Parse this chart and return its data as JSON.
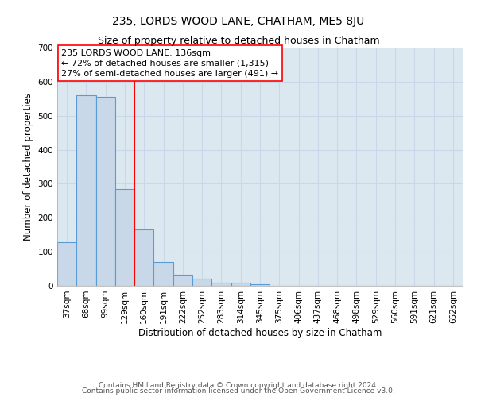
{
  "title": "235, LORDS WOOD LANE, CHATHAM, ME5 8JU",
  "subtitle": "Size of property relative to detached houses in Chatham",
  "xlabel": "Distribution of detached houses by size in Chatham",
  "ylabel": "Number of detached properties",
  "bar_labels": [
    "37sqm",
    "68sqm",
    "99sqm",
    "129sqm",
    "160sqm",
    "191sqm",
    "222sqm",
    "252sqm",
    "283sqm",
    "314sqm",
    "345sqm",
    "375sqm",
    "406sqm",
    "437sqm",
    "468sqm",
    "498sqm",
    "529sqm",
    "560sqm",
    "591sqm",
    "621sqm",
    "652sqm"
  ],
  "bar_values": [
    128,
    560,
    555,
    285,
    165,
    70,
    33,
    20,
    10,
    10,
    5,
    0,
    0,
    0,
    0,
    0,
    0,
    0,
    0,
    0,
    0
  ],
  "bar_color": "#c8d8e8",
  "bar_edge_color": "#5b9bd5",
  "vline_color": "red",
  "annotation_line1": "235 LORDS WOOD LANE: 136sqm",
  "annotation_line2": "← 72% of detached houses are smaller (1,315)",
  "annotation_line3": "27% of semi-detached houses are larger (491) →",
  "ylim_max": 700,
  "yticks": [
    0,
    100,
    200,
    300,
    400,
    500,
    600,
    700
  ],
  "grid_color": "#c8d8e8",
  "background_color": "#dce8f0",
  "footer_line1": "Contains HM Land Registry data © Crown copyright and database right 2024.",
  "footer_line2": "Contains public sector information licensed under the Open Government Licence v3.0.",
  "title_fontsize": 10,
  "subtitle_fontsize": 9,
  "axis_label_fontsize": 8.5,
  "tick_fontsize": 7.5,
  "annotation_fontsize": 8,
  "footer_fontsize": 6.5
}
